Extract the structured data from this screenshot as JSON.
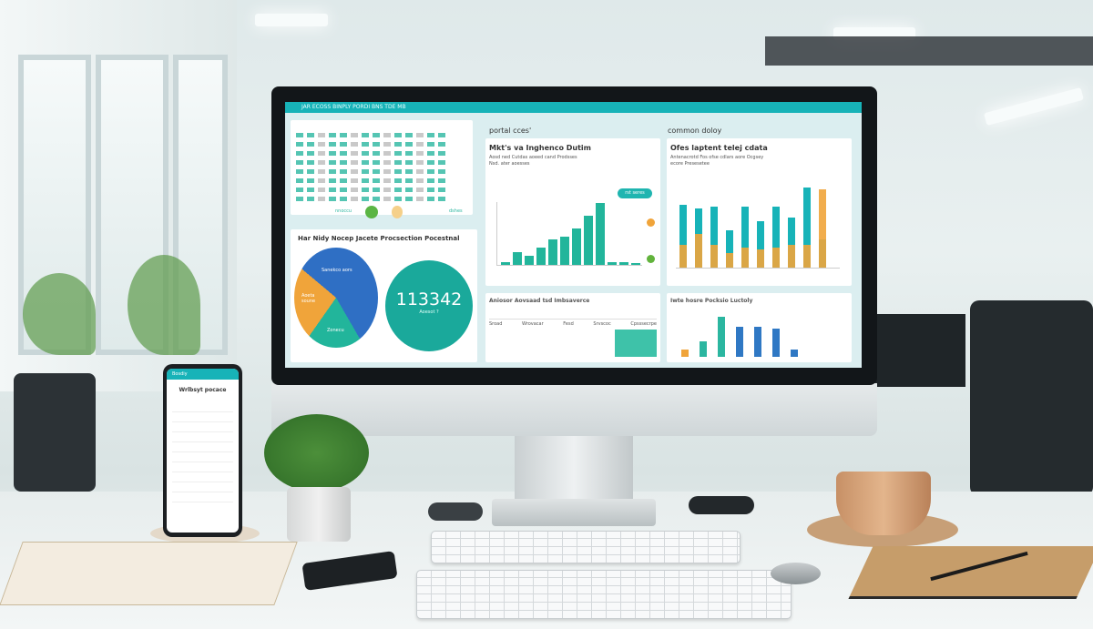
{
  "dashboard": {
    "topbar_text": "JAR ECOSS BINPLY PORDI BNS TDE MB",
    "table_panel": {
      "rows": 8,
      "footer_left": "nnoccu",
      "footer_right": "dshes"
    },
    "pie_panel": {
      "title": "Har Nidy Nocep Jacete Procsection Pocestnal",
      "slices": [
        {
          "label": "Sanekco aors",
          "value": 40,
          "color": "#2f6fc4"
        },
        {
          "label": "Aoeta soune",
          "value": 15,
          "color": "#2f6fc4"
        },
        {
          "label": "",
          "value": 17,
          "color": "#22b59b"
        },
        {
          "label": "Zonecu",
          "value": 28,
          "color": "#f0a43a"
        }
      ],
      "kpi_value": "113342",
      "kpi_label": "Aoesot ?"
    },
    "section_left": "portal cces'",
    "section_right": "common doloy",
    "chart1": {
      "title": "Mkt's va Inghenco Dutim",
      "subtitle": "Aosd ned Cutdas aoeed cand Prodsses",
      "subtitle2": "Nsd. ater aoesses",
      "badge": "rst seres",
      "values": [
        2,
        8,
        6,
        11,
        16,
        18,
        23,
        31,
        39,
        2,
        1.5,
        1
      ]
    },
    "chart2": {
      "title": "Ofes laptent telej cdata",
      "subtitle": "Antenacrotd Fos ofse cdlars aore Ocgsey",
      "subtitle2": "ecore Presesetee",
      "teal": [
        34,
        32,
        33,
        20,
        33,
        25,
        33,
        27,
        43,
        15
      ],
      "orange": [
        12,
        18,
        12,
        8,
        11,
        10,
        11,
        12,
        12,
        42
      ]
    },
    "panel3": {
      "title": "Aniosor Aovsaad tsd Imbsaverce",
      "headers": [
        "Sroad",
        "Wrovacar",
        "Fesd",
        "Srvscoc",
        "Cpsssecrpe"
      ]
    },
    "panel4": {
      "title": "Iwte hosre Pocksio Luctoly",
      "values": [
        4,
        8,
        21,
        16,
        16,
        15,
        4
      ],
      "colors": [
        "#f0a43a",
        "#2bb6a0",
        "#2bb6a0",
        "#2f78c4",
        "#2f78c4",
        "#2f78c4",
        "#2f78c4"
      ]
    }
  },
  "phone": {
    "header": "Wrlbsyt pocace",
    "header_bar": "Bosdiy"
  },
  "colors": {
    "teal": "#17b3b8",
    "green": "#22b59b",
    "orange": "#f0a43a",
    "blue": "#2f6fc4"
  }
}
